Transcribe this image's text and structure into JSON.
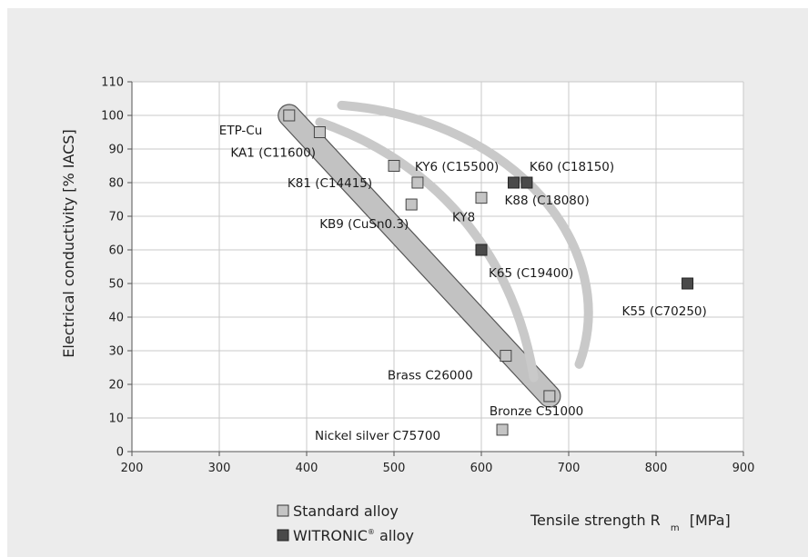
{
  "chart_data": {
    "type": "scatter",
    "xlabel_main": "Tensile strength R",
    "xlabel_sub": "m",
    "xlabel_unit": "[MPa]",
    "ylabel": "Electrical conductivity [% IACS]",
    "xlim": [
      200,
      900
    ],
    "ylim": [
      0,
      110
    ],
    "x_ticks": [
      200,
      300,
      400,
      500,
      600,
      700,
      800,
      900
    ],
    "y_ticks": [
      0,
      10,
      20,
      30,
      40,
      50,
      60,
      70,
      80,
      90,
      100,
      110
    ],
    "grid": true,
    "legend_position": "bottom-left",
    "colors": {
      "standard": "#c4c4c4",
      "witronic": "#4a4a4a",
      "band": "#c2c2c2",
      "arc": "#c9c9c9"
    },
    "series": [
      {
        "name": "Standard alloy",
        "points": [
          {
            "label": "ETP-Cu",
            "x": 380,
            "y": 100
          },
          {
            "label": "KA1 (C11600)",
            "x": 415,
            "y": 95
          },
          {
            "label": "",
            "x": 500,
            "y": 85
          },
          {
            "label": "KY6 (C15500)",
            "x": 527,
            "y": 80
          },
          {
            "label": "K81 (C14415)",
            "x": 527,
            "y": 80
          },
          {
            "label": "KB9 (CuSn0.3)",
            "x": 520,
            "y": 73.5
          },
          {
            "label": "KY8",
            "x": 600,
            "y": 75.5
          },
          {
            "label": "Brass C26000",
            "x": 628,
            "y": 28.5
          },
          {
            "label": "Bronze C51000",
            "x": 678,
            "y": 16.5
          },
          {
            "label": "Nickel silver C75700",
            "x": 624,
            "y": 6.5
          }
        ]
      },
      {
        "name": "WITRONIC® alloy",
        "points": [
          {
            "label": "K88 (C18080)",
            "x": 637,
            "y": 80
          },
          {
            "label": "K60 (C18150)",
            "x": 652,
            "y": 80
          },
          {
            "label": "K65 (C19400)",
            "x": 600,
            "y": 60
          },
          {
            "label": "K55 (C70250)",
            "x": 836,
            "y": 50
          }
        ]
      }
    ],
    "legend": [
      {
        "label": "Standard alloy",
        "series": "standard"
      },
      {
        "label": "WITRONIC",
        "mark": "®",
        "suffix": " alloy",
        "series": "witronic"
      }
    ]
  }
}
